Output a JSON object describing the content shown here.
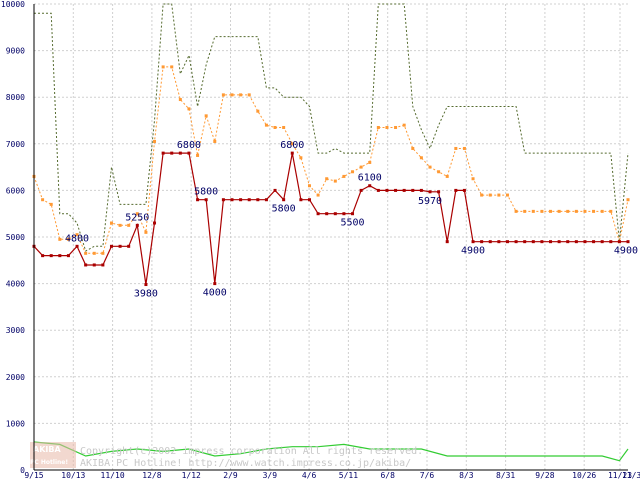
{
  "chart_data": {
    "type": "line",
    "title": "",
    "xlabel": "",
    "ylabel": "",
    "ylim": [
      0,
      10000
    ],
    "y_ticks": [
      0,
      1000,
      2000,
      3000,
      4000,
      5000,
      6000,
      7000,
      8000,
      9000,
      10000
    ],
    "y_tick_labels": [
      "0",
      "1000",
      "2000",
      "3000",
      "4000",
      "5000",
      "6000",
      "7000",
      "8000",
      "9000",
      "10000"
    ],
    "x_tick_labels": [
      "9/15",
      "10/13",
      "11/10",
      "12/8",
      "1/12",
      "2/9",
      "3/9",
      "4/6",
      "5/11",
      "6/8",
      "7/6",
      "8/3",
      "8/31",
      "9/28",
      "10/26",
      "11/23",
      "11/30"
    ],
    "grid": true,
    "legend": "none",
    "colors": {
      "min_price": "#aa0000",
      "avg_price": "#ff9933",
      "max_price": "#556b2f",
      "shop_count": "#33cc33",
      "grid": "#d0d0d0",
      "tick_text": "#000066"
    },
    "series": [
      {
        "key": "min_price",
        "style": "solid",
        "x": [
          0,
          1,
          2,
          3,
          4,
          5,
          6,
          7,
          8,
          9,
          10,
          11,
          12,
          13,
          14,
          15,
          16,
          17,
          18,
          19,
          20,
          21,
          22,
          23,
          24,
          25,
          26,
          27,
          28,
          29,
          30,
          31,
          32,
          33,
          34,
          35,
          36,
          37,
          38,
          39,
          40,
          41,
          42,
          43,
          44,
          45,
          46,
          47,
          48,
          49,
          50,
          51,
          52,
          53,
          54,
          55,
          56,
          57,
          58,
          59,
          60,
          61,
          62,
          63,
          64,
          65,
          66,
          67,
          68,
          69
        ],
        "values": [
          4800,
          4600,
          4600,
          4600,
          4600,
          4800,
          4400,
          4400,
          4400,
          4800,
          4800,
          4800,
          5250,
          3980,
          5300,
          6800,
          6800,
          6800,
          6800,
          5800,
          5800,
          4000,
          5800,
          5800,
          5800,
          5800,
          5800,
          5800,
          6000,
          5800,
          6800,
          5800,
          5800,
          5500,
          5500,
          5500,
          5500,
          5500,
          6000,
          6100,
          6000,
          6000,
          6000,
          6000,
          6000,
          6000,
          5970,
          5970,
          4900,
          6000,
          6000,
          4900,
          4900,
          4900,
          4900,
          4900,
          4900,
          4900,
          4900,
          4900,
          4900,
          4900,
          4900,
          4900,
          4900,
          4900,
          4900,
          4900,
          4900,
          4900
        ]
      },
      {
        "key": "avg_price",
        "style": "dotted",
        "x": [
          0,
          1,
          2,
          3,
          4,
          5,
          6,
          7,
          8,
          9,
          10,
          11,
          12,
          13,
          14,
          15,
          16,
          17,
          18,
          19,
          20,
          21,
          22,
          23,
          24,
          25,
          26,
          27,
          28,
          29,
          30,
          31,
          32,
          33,
          34,
          35,
          36,
          37,
          38,
          39,
          40,
          41,
          42,
          43,
          44,
          45,
          46,
          47,
          48,
          49,
          50,
          51,
          52,
          53,
          54,
          55,
          56,
          57,
          58,
          59,
          60,
          61,
          62,
          63,
          64,
          65,
          66,
          67,
          68,
          69
        ],
        "values": [
          6300,
          5800,
          5700,
          4950,
          4950,
          5050,
          4650,
          4650,
          4650,
          5300,
          5250,
          5250,
          5500,
          5100,
          7050,
          8650,
          8650,
          7950,
          7750,
          6750,
          7600,
          7050,
          8050,
          8050,
          8050,
          8050,
          7700,
          7400,
          7350,
          7350,
          7000,
          6700,
          6100,
          5900,
          6250,
          6200,
          6300,
          6400,
          6500,
          6600,
          7350,
          7350,
          7350,
          7400,
          6900,
          6700,
          6500,
          6400,
          6300,
          6900,
          6900,
          6250,
          5900,
          5900,
          5900,
          5900,
          5550,
          5550,
          5550,
          5550,
          5550,
          5550,
          5550,
          5550,
          5550,
          5550,
          5550,
          5550,
          4900,
          5800
        ]
      },
      {
        "key": "max_price",
        "style": "dotted",
        "x": [
          0,
          1,
          2,
          3,
          4,
          5,
          6,
          7,
          8,
          9,
          10,
          11,
          12,
          13,
          14,
          15,
          16,
          17,
          18,
          19,
          20,
          21,
          22,
          23,
          24,
          25,
          26,
          27,
          28,
          29,
          30,
          31,
          32,
          33,
          34,
          35,
          36,
          37,
          38,
          39,
          40,
          41,
          42,
          43,
          44,
          45,
          46,
          47,
          48,
          49,
          50,
          51,
          52,
          53,
          54,
          55,
          56,
          57,
          58,
          59,
          60,
          61,
          62,
          63,
          64,
          65,
          66,
          67,
          68,
          69
        ],
        "values": [
          9800,
          9800,
          9800,
          5500,
          5500,
          5300,
          4700,
          4800,
          4800,
          6500,
          5700,
          5700,
          5700,
          5700,
          7500,
          10000,
          10000,
          8500,
          8900,
          7800,
          8700,
          9300,
          9300,
          9300,
          9300,
          9300,
          9300,
          8200,
          8200,
          8000,
          8000,
          8000,
          7800,
          6800,
          6800,
          6900,
          6800,
          6800,
          6800,
          6800,
          10000,
          10000,
          10000,
          10000,
          7800,
          7300,
          6900,
          7400,
          7800,
          7800,
          7800,
          7800,
          7800,
          7800,
          7800,
          7800,
          7800,
          6800,
          6800,
          6800,
          6800,
          6800,
          6800,
          6800,
          6800,
          6800,
          6800,
          6800,
          4900,
          6800
        ]
      },
      {
        "key": "shop_count",
        "style": "solid",
        "x": [
          0,
          3,
          6,
          9,
          12,
          15,
          18,
          21,
          24,
          27,
          30,
          33,
          36,
          39,
          42,
          45,
          48,
          51,
          54,
          57,
          60,
          63,
          66,
          68,
          69
        ],
        "values": [
          600,
          550,
          300,
          400,
          450,
          400,
          450,
          300,
          350,
          450,
          500,
          500,
          550,
          450,
          450,
          450,
          300,
          300,
          300,
          300,
          300,
          300,
          300,
          200,
          450
        ]
      }
    ],
    "data_labels": [
      {
        "text": "4800",
        "series": "min_price",
        "index": 5
      },
      {
        "text": "5250",
        "series": "min_price",
        "index": 12
      },
      {
        "text": "3980",
        "series": "min_price",
        "index": 13
      },
      {
        "text": "6800",
        "series": "min_price",
        "index": 18
      },
      {
        "text": "5800",
        "series": "min_price",
        "index": 20
      },
      {
        "text": "4000",
        "series": "min_price",
        "index": 21
      },
      {
        "text": "5800",
        "series": "min_price",
        "index": 29
      },
      {
        "text": "6800",
        "series": "min_price",
        "index": 30
      },
      {
        "text": "5500",
        "series": "min_price",
        "index": 37
      },
      {
        "text": "6100",
        "series": "min_price",
        "index": 39
      },
      {
        "text": "5970",
        "series": "min_price",
        "index": 46
      },
      {
        "text": "4900",
        "series": "min_price",
        "index": 51
      },
      {
        "text": "4900",
        "series": "min_price",
        "index": 69
      }
    ]
  },
  "watermark": {
    "logo_top": "AKIBA",
    "logo_bottom": "PC Hotline!",
    "line1": "Copyright(c)2002 impress corporation All rights reserved.",
    "line2": "AKIBA PC Hotline!  http://www.watch.impress.co.jp/akiba/"
  }
}
